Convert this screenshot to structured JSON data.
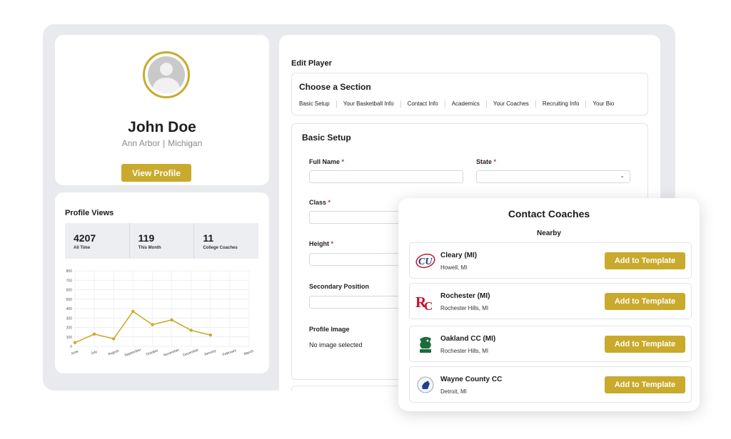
{
  "profile": {
    "name": "John Doe",
    "city": "Ann Arbor",
    "separator": "|",
    "state": "Michigan",
    "view_profile_label": "View Profile"
  },
  "profile_views": {
    "title": "Profile Views",
    "stats": [
      {
        "value": "4207",
        "label": "All Time"
      },
      {
        "value": "119",
        "label": "This Month"
      },
      {
        "value": "11",
        "label": "College Coaches"
      }
    ]
  },
  "chart_data": {
    "type": "line",
    "categories": [
      "June",
      "July",
      "August",
      "September",
      "October",
      "November",
      "December",
      "January",
      "February",
      "March"
    ],
    "values": [
      40,
      130,
      80,
      370,
      230,
      280,
      170,
      120,
      null,
      null
    ],
    "ylim": [
      0,
      800
    ],
    "yticks": [
      0,
      100,
      200,
      300,
      400,
      500,
      600,
      700,
      800
    ],
    "grid": true,
    "color": "#c9aa2c"
  },
  "edit": {
    "title": "Edit Player",
    "choose_section": "Choose a Section",
    "tabs": [
      "Basic Setup",
      "Your Basketball Info",
      "Contact Info",
      "Academics",
      "Your Coaches",
      "Recruiting Info",
      "Your Bio"
    ],
    "basic_setup_title": "Basic Setup",
    "fields": {
      "full_name": "Full Name",
      "state": "State",
      "class": "Class",
      "height": "Height",
      "secondary_position": "Secondary Position",
      "profile_image": "Profile Image"
    },
    "required_marker": "*",
    "no_image": "No image selected"
  },
  "coaches": {
    "title": "Contact Coaches",
    "subtitle": "Nearby",
    "add_label": "Add to Template",
    "items": [
      {
        "name": "Cleary (MI)",
        "location": "Howell, MI",
        "logo": "cu-logo"
      },
      {
        "name": "Rochester (MI)",
        "location": "Rochester Hills, MI",
        "logo": "rc-logo"
      },
      {
        "name": "Oakland CC (MI)",
        "location": "Rochester Hills, MI",
        "logo": "ravens-logo"
      },
      {
        "name": "Wayne County CC",
        "location": "Detroit, MI",
        "logo": "wccc-logo"
      }
    ]
  },
  "colors": {
    "accent": "#c9aa2c",
    "required": "#d0342c"
  }
}
